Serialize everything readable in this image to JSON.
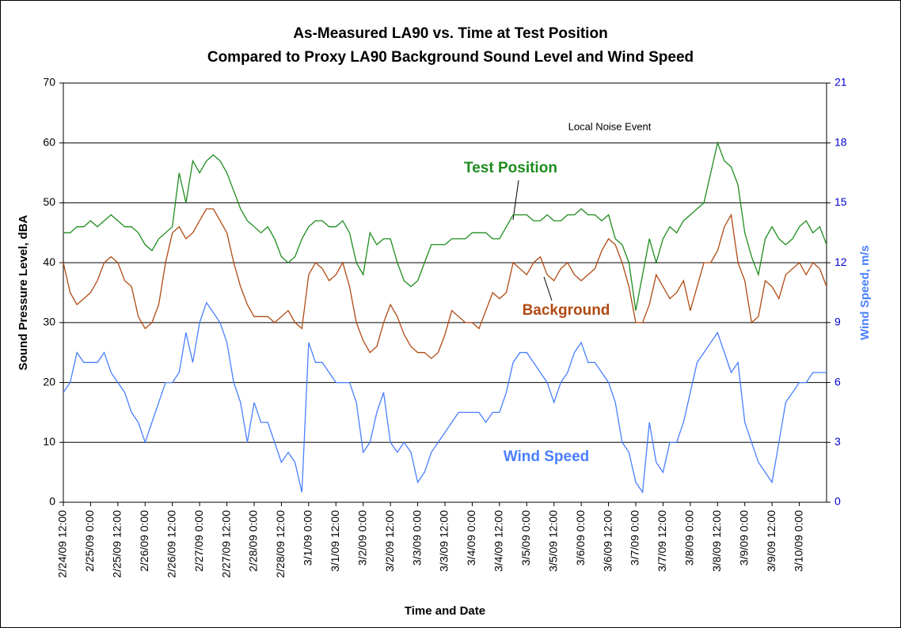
{
  "chart_data": {
    "type": "line",
    "title": [
      "As-Measured LA90 vs. Time at Test Position",
      "Compared to Proxy LA90 Background Sound Level and Wind Speed"
    ],
    "x_label": "Time and Date",
    "y_label": "Sound Pressure Level, dBA",
    "y2_label": "Wind Speed, m/s",
    "annotations": [
      "Local Noise Event"
    ],
    "categories": [
      "2/24/09 12:00",
      null,
      null,
      null,
      "2/25/09 0:00",
      null,
      null,
      null,
      "2/25/09 12:00",
      null,
      null,
      null,
      "2/26/09 0:00",
      null,
      null,
      null,
      "2/26/09 12:00",
      null,
      null,
      null,
      "2/27/09 0:00",
      null,
      null,
      null,
      "2/27/09 12:00",
      null,
      null,
      null,
      "2/28/09 0:00",
      null,
      null,
      null,
      "2/28/09 12:00",
      null,
      null,
      null,
      "3/1/09 0:00",
      null,
      null,
      null,
      "3/1/09 12:00",
      null,
      null,
      null,
      "3/2/09 0:00",
      null,
      null,
      null,
      "3/2/09 12:00",
      null,
      null,
      null,
      "3/3/09 0:00",
      null,
      null,
      null,
      "3/3/09 12:00",
      null,
      null,
      null,
      "3/4/09 0:00",
      null,
      null,
      null,
      "3/4/09 12:00",
      null,
      null,
      null,
      "3/5/09 0:00",
      null,
      null,
      null,
      "3/5/09 12:00",
      null,
      null,
      null,
      "3/6/09 0:00",
      null,
      null,
      null,
      "3/6/09 12:00",
      null,
      null,
      null,
      "3/7/09 0:00",
      null,
      null,
      null,
      "3/7/09 12:00",
      null,
      null,
      null,
      "3/8/09 0:00",
      null,
      null,
      null,
      "3/8/09 12:00",
      null,
      null,
      null,
      "3/9/09 0:00",
      null,
      null,
      null,
      "3/9/09 12:00",
      null,
      null,
      null,
      "3/10/09 0:00",
      null,
      null,
      null,
      null
    ],
    "series": [
      {
        "name": "Test Position",
        "color": "#1e8c1e",
        "values": [
          45,
          45,
          46,
          46,
          47,
          46,
          47,
          48,
          47,
          46,
          46,
          45,
          43,
          42,
          44,
          45,
          46,
          55,
          50,
          57,
          55,
          57,
          58,
          57,
          55,
          52,
          49,
          47,
          46,
          45,
          46,
          44,
          41,
          40,
          41,
          44,
          46,
          47,
          47,
          46,
          46,
          47,
          45,
          40,
          38,
          45,
          43,
          44,
          44,
          40,
          37,
          36,
          37,
          40,
          43,
          43,
          43,
          44,
          44,
          44,
          45,
          45,
          45,
          44,
          44,
          46,
          48,
          48,
          48,
          47,
          47,
          48,
          47,
          47,
          48,
          48,
          49,
          48,
          48,
          47,
          48,
          44,
          43,
          40,
          32,
          38,
          44,
          40,
          44,
          46,
          45,
          47,
          48,
          49,
          50,
          55,
          60,
          57,
          56,
          53,
          45,
          41,
          38,
          44,
          46,
          44,
          43,
          44,
          46,
          47,
          45,
          46,
          43
        ]
      },
      {
        "name": "Background",
        "color": "#b04a12",
        "values": [
          40,
          35,
          33,
          34,
          35,
          37,
          40,
          41,
          40,
          37,
          36,
          31,
          29,
          30,
          33,
          40,
          45,
          46,
          44,
          45,
          47,
          49,
          49,
          47,
          45,
          40,
          36,
          33,
          31,
          31,
          31,
          30,
          31,
          32,
          30,
          29,
          38,
          40,
          39,
          37,
          38,
          40,
          36,
          30,
          27,
          25,
          26,
          30,
          33,
          31,
          28,
          26,
          25,
          25,
          24,
          25,
          28,
          32,
          31,
          30,
          30,
          29,
          32,
          35,
          34,
          35,
          40,
          39,
          38,
          40,
          41,
          38,
          37,
          39,
          40,
          38,
          37,
          38,
          39,
          42,
          44,
          43,
          40,
          36,
          30,
          30,
          33,
          38,
          36,
          34,
          35,
          37,
          32,
          36,
          40,
          40,
          42,
          46,
          48,
          40,
          37,
          30,
          31,
          37,
          36,
          34,
          38,
          39,
          40,
          38,
          40,
          39,
          36
        ]
      },
      {
        "name": "Wind Speed",
        "color": "#4a7fff",
        "axis": "y2",
        "values": [
          5.5,
          6,
          7.5,
          7,
          7,
          7,
          7.5,
          6.5,
          6,
          5.5,
          4.5,
          4,
          3,
          4,
          5,
          6,
          6,
          6.5,
          8.5,
          7,
          9,
          10,
          9.5,
          9,
          8,
          6,
          5,
          3,
          5,
          4,
          4,
          3,
          2,
          2.5,
          2,
          0.5,
          8,
          7,
          7,
          6.5,
          6,
          6,
          6,
          5,
          2.5,
          3,
          4.5,
          5.5,
          3,
          2.5,
          3,
          2.5,
          1,
          1.5,
          2.5,
          3,
          3.5,
          4,
          4.5,
          4.5,
          4.5,
          4.5,
          4,
          4.5,
          4.5,
          5.5,
          7,
          7.5,
          7.5,
          7,
          6.5,
          6,
          5,
          6,
          6.5,
          7.5,
          8,
          7,
          7,
          6.5,
          6,
          5,
          3,
          2.5,
          1,
          0.5,
          4,
          2,
          1.5,
          3,
          3,
          4,
          5.5,
          7,
          7.5,
          8,
          8.5,
          7.5,
          6.5,
          7,
          4,
          3,
          2,
          1.5,
          1,
          3,
          5,
          5.5,
          6,
          6,
          6.5,
          6.5,
          6.5
        ]
      }
    ],
    "ylim": [
      0,
      70
    ],
    "yticks": [
      0,
      10,
      20,
      30,
      40,
      50,
      60,
      70
    ],
    "y2lim": [
      0,
      21
    ],
    "y2ticks": [
      0,
      3,
      6,
      9,
      12,
      15,
      18,
      21
    ],
    "y2_color": "#0000cc",
    "grid": true
  }
}
